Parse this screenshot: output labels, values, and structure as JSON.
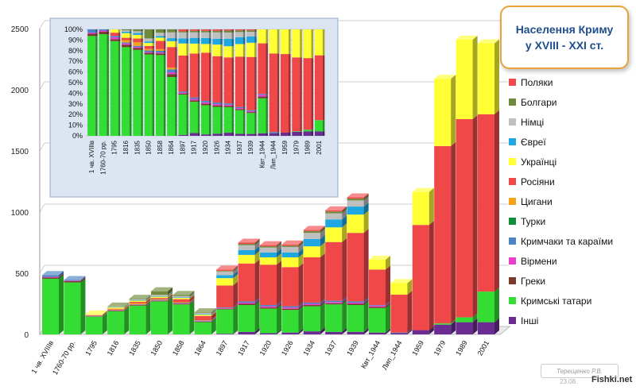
{
  "title": {
    "line1": "Населення Криму",
    "line2": "у XVIII - XXI ст."
  },
  "watermark": {
    "author": "Терещенко Р.В.",
    "date": "23.08.",
    "site": "Fishki.net"
  },
  "colors": {
    "Поляки": "#f24b4b",
    "Болгари": "#6f8a3a",
    "Німці": "#bfbfbf",
    "Євреї": "#1ea7e0",
    "Українці": "#ffff33",
    "Росіяни": "#f04848",
    "Цигани": "#f5a21b",
    "Турки": "#0f8f3c",
    "Кримчаки та караїми": "#4a84c4",
    "Вірмени": "#ea3fce",
    "Греки": "#7b3b2a",
    "Кримські татари": "#33dd33",
    "Інші": "#6a2c91"
  },
  "chart_data": [
    {
      "type": "bar",
      "stacked": true,
      "ylim": [
        0,
        2500
      ],
      "yticks": [
        0,
        500,
        1000,
        1500,
        2000,
        2500
      ],
      "grid": true,
      "legend_position": "right",
      "categories": [
        "1 чв. XVIIIв",
        "1760-70 рр.",
        "1795",
        "1816",
        "1835",
        "1850",
        "1858",
        "1864",
        "1897",
        "1917",
        "1920",
        "1926",
        "1934",
        "1937",
        "1939",
        "Квт_1944",
        "Лип_1944",
        "1959",
        "1979",
        "1989",
        "2001"
      ],
      "stack_order": [
        "Інші",
        "Кримські татари",
        "Греки",
        "Вірмени",
        "Кримчаки та караїми",
        "Турки",
        "Цигани",
        "Росіяни",
        "Українці",
        "Євреї",
        "Німці",
        "Болгари",
        "Поляки"
      ],
      "series": [
        {
          "name": "Інші",
          "values": [
            0,
            0,
            0,
            0,
            0,
            0,
            0,
            0,
            5,
            20,
            10,
            15,
            25,
            20,
            20,
            15,
            10,
            35,
            80,
            100,
            100
          ]
        },
        {
          "name": "Кримські татари",
          "values": [
            455,
            425,
            145,
            190,
            235,
            270,
            245,
            100,
            200,
            220,
            200,
            185,
            205,
            225,
            220,
            200,
            0,
            0,
            10,
            40,
            250
          ]
        },
        {
          "name": "Греки",
          "values": [
            10,
            10,
            3,
            5,
            5,
            5,
            5,
            5,
            5,
            10,
            10,
            10,
            10,
            10,
            10,
            10,
            0,
            0,
            0,
            0,
            0
          ]
        },
        {
          "name": "Вірмени",
          "values": [
            5,
            5,
            3,
            3,
            3,
            3,
            3,
            3,
            5,
            10,
            10,
            10,
            10,
            10,
            10,
            10,
            0,
            0,
            0,
            0,
            0
          ]
        },
        {
          "name": "Кримчаки та караїми",
          "values": [
            15,
            5,
            2,
            2,
            3,
            5,
            5,
            5,
            5,
            10,
            10,
            10,
            10,
            10,
            10,
            5,
            5,
            0,
            0,
            0,
            0
          ]
        },
        {
          "name": "Турки",
          "values": [
            0,
            0,
            0,
            0,
            0,
            0,
            0,
            0,
            0,
            0,
            0,
            0,
            0,
            0,
            0,
            0,
            0,
            0,
            0,
            0,
            0
          ]
        },
        {
          "name": "Цигани",
          "values": [
            0,
            0,
            0,
            5,
            10,
            5,
            5,
            3,
            0,
            0,
            0,
            0,
            0,
            0,
            0,
            0,
            0,
            0,
            0,
            0,
            0
          ]
        },
        {
          "name": "Росіяни",
          "values": [
            0,
            0,
            5,
            5,
            10,
            10,
            25,
            35,
            180,
            310,
            330,
            320,
            370,
            480,
            560,
            290,
            310,
            860,
            1450,
            1620,
            1450
          ]
        },
        {
          "name": "Українці",
          "values": [
            0,
            0,
            5,
            10,
            10,
            10,
            10,
            10,
            60,
            70,
            60,
            80,
            90,
            120,
            150,
            80,
            95,
            270,
            550,
            650,
            580
          ]
        },
        {
          "name": "Євреї",
          "values": [
            0,
            0,
            0,
            3,
            5,
            5,
            5,
            5,
            25,
            40,
            40,
            40,
            60,
            65,
            65,
            0,
            0,
            0,
            0,
            0,
            0
          ]
        },
        {
          "name": "Німці",
          "values": [
            0,
            0,
            0,
            3,
            5,
            10,
            10,
            10,
            30,
            40,
            40,
            45,
            50,
            50,
            50,
            0,
            0,
            0,
            0,
            0,
            0
          ]
        },
        {
          "name": "Болгари",
          "values": [
            0,
            0,
            0,
            2,
            5,
            30,
            10,
            5,
            5,
            10,
            10,
            10,
            15,
            15,
            15,
            0,
            0,
            0,
            0,
            0,
            0
          ]
        },
        {
          "name": "Поляки",
          "values": [
            0,
            0,
            0,
            0,
            0,
            0,
            0,
            0,
            10,
            10,
            10,
            10,
            10,
            10,
            10,
            0,
            0,
            0,
            0,
            0,
            0
          ]
        }
      ]
    },
    {
      "type": "bar",
      "stacked": true,
      "percent": true,
      "ylim": [
        0,
        100
      ],
      "yticks": [
        "0%",
        "10%",
        "20%",
        "30%",
        "40%",
        "50%",
        "60%",
        "70%",
        "80%",
        "90%",
        "100%"
      ],
      "categories": [
        "1 чв. XVIIIв",
        "1760-70 рр.",
        "1795",
        "1816",
        "1835",
        "1850",
        "1858",
        "1864",
        "1897",
        "1917",
        "1920",
        "1926",
        "1934",
        "1937",
        "1939",
        "Квт_1944",
        "Лип_1944",
        "1959",
        "1979",
        "1989",
        "2001"
      ],
      "series_ref": "same as main chart, shown as share of total"
    }
  ]
}
